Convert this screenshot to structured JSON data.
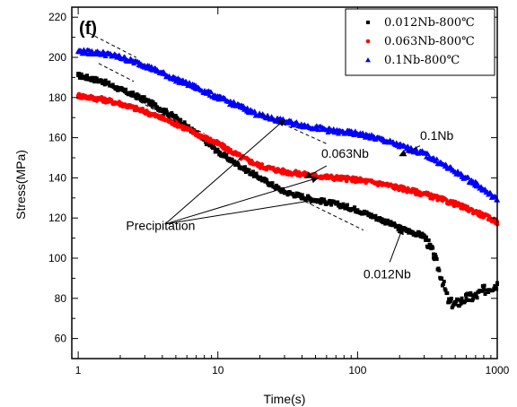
{
  "chart_data": {
    "type": "scatter",
    "panel_label": "(f)",
    "xlabel": "Time(s)",
    "ylabel": "Stress(MPa)",
    "xscale": "log",
    "xlim": [
      0.9,
      1000
    ],
    "ylim": [
      50,
      225
    ],
    "x_ticks": [
      1,
      10,
      100,
      1000
    ],
    "x_tick_labels": [
      "1",
      "10",
      "100",
      "1000"
    ],
    "y_ticks": [
      60,
      80,
      100,
      120,
      140,
      160,
      180,
      200,
      220
    ],
    "y_tick_labels": [
      "60",
      "80",
      "100",
      "120",
      "140",
      "160",
      "180",
      "200",
      "220"
    ],
    "legend_position": "top-right",
    "series": [
      {
        "name": "0.012Nb-800℃",
        "color": "#000000",
        "marker": "square",
        "x": [
          1,
          1.5,
          2,
          3,
          5,
          7,
          10,
          15,
          20,
          30,
          50,
          70,
          100,
          150,
          200,
          300,
          350,
          400,
          450,
          500,
          600,
          700,
          800,
          1000
        ],
        "y": [
          191,
          188,
          184,
          179,
          170,
          162,
          153,
          145,
          140,
          133,
          129,
          127,
          124,
          119,
          115,
          111,
          102,
          90,
          78,
          77,
          80,
          81,
          84,
          87
        ]
      },
      {
        "name": "0.063Nb-800℃",
        "color": "#ff0000",
        "marker": "circle",
        "x": [
          1,
          1.5,
          2,
          3,
          5,
          7,
          10,
          15,
          20,
          30,
          50,
          70,
          100,
          150,
          200,
          300,
          500,
          700,
          1000
        ],
        "y": [
          181,
          179,
          177,
          173,
          167,
          162,
          157,
          150,
          146,
          143,
          141,
          140,
          139,
          137,
          135,
          132,
          127,
          123,
          118
        ]
      },
      {
        "name": "0.1Nb-800℃",
        "color": "#0000ff",
        "marker": "triangle",
        "x": [
          1,
          1.5,
          2,
          3,
          5,
          7,
          10,
          15,
          20,
          30,
          50,
          70,
          100,
          150,
          200,
          300,
          500,
          700,
          1000
        ],
        "y": [
          203,
          202,
          200,
          196,
          189,
          185,
          180,
          175,
          171,
          168,
          165,
          163,
          162,
          159,
          156,
          152,
          143,
          137,
          129
        ]
      }
    ],
    "annotations": [
      {
        "text": "0.1Nb",
        "x": 280,
        "y": 159
      },
      {
        "text": "0.063Nb",
        "x": 55,
        "y": 150
      },
      {
        "text": "Precipitation",
        "x": 2.2,
        "y": 114
      },
      {
        "text": "0.012Nb",
        "x": 110,
        "y": 90
      }
    ]
  }
}
